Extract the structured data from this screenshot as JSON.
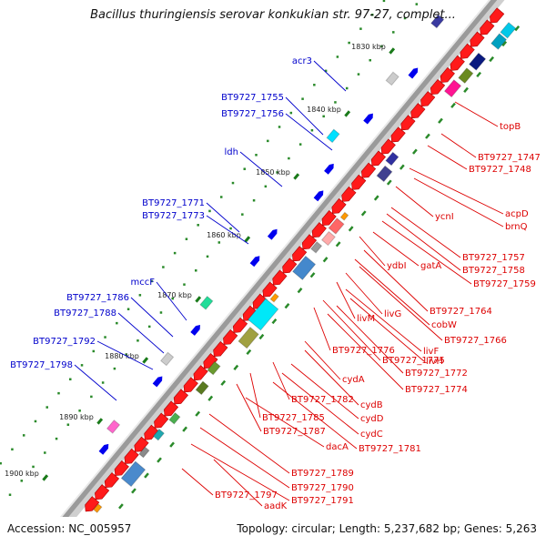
{
  "title": "Bacillus thuringiensis serovar konkukian str. 97-27, complet...",
  "accession": "Accession: NC_005957",
  "summary": "Topology: circular; Length: 5,237,682 bp; Genes: 5,263",
  "colors": {
    "forward_label": "#0000cc",
    "reverse_label": "#dd0000",
    "backbone": "#999999",
    "gene_reverse": "#ff0000",
    "gene_forward": "#0000ee"
  },
  "ticks": [
    {
      "label": "1830 kbp"
    },
    {
      "label": "1840 kbp"
    },
    {
      "label": "1850 kbp"
    },
    {
      "label": "1860 kbp"
    },
    {
      "label": "1870 kbp"
    },
    {
      "label": "1880 kbp"
    },
    {
      "label": "1890 kbp"
    },
    {
      "label": "1900 kbp"
    }
  ],
  "forward_genes": [
    {
      "label": "acr3"
    },
    {
      "label": "BT9727_1755"
    },
    {
      "label": "BT9727_1756"
    },
    {
      "label": "ldh"
    },
    {
      "label": "BT9727_1771"
    },
    {
      "label": "BT9727_1773"
    },
    {
      "label": "mccF"
    },
    {
      "label": "BT9727_1786"
    },
    {
      "label": "BT9727_1788"
    },
    {
      "label": "BT9727_1792"
    },
    {
      "label": "BT9727_1798"
    }
  ],
  "reverse_genes": [
    {
      "label": "topB"
    },
    {
      "label": "BT9727_1747"
    },
    {
      "label": "BT9727_1748"
    },
    {
      "label": "acpD"
    },
    {
      "label": "brnQ"
    },
    {
      "label": "ycnI"
    },
    {
      "label": "BT9727_1757"
    },
    {
      "label": "BT9727_1758"
    },
    {
      "label": "BT9727_1759"
    },
    {
      "label": "ydbI"
    },
    {
      "label": "gatA"
    },
    {
      "label": "BT9727_1764"
    },
    {
      "label": "livG"
    },
    {
      "label": "livM"
    },
    {
      "label": "cobW"
    },
    {
      "label": "BT9727_1766"
    },
    {
      "label": "livF"
    },
    {
      "label": "BT9727_1776"
    },
    {
      "label": "BT9727_1775"
    },
    {
      "label": "livH"
    },
    {
      "label": "BT9727_1772"
    },
    {
      "label": "cydA"
    },
    {
      "label": "BT9727_1774"
    },
    {
      "label": "BT9727_1782"
    },
    {
      "label": "cydB"
    },
    {
      "label": "BT9727_1785"
    },
    {
      "label": "cydD"
    },
    {
      "label": "BT9727_1787"
    },
    {
      "label": "cydC"
    },
    {
      "label": "dacA"
    },
    {
      "label": "BT9727_1781"
    },
    {
      "label": "BT9727_1789"
    },
    {
      "label": "BT9727_1790"
    },
    {
      "label": "BT9727_1797"
    },
    {
      "label": "BT9727_1791"
    },
    {
      "label": "aadK"
    }
  ]
}
